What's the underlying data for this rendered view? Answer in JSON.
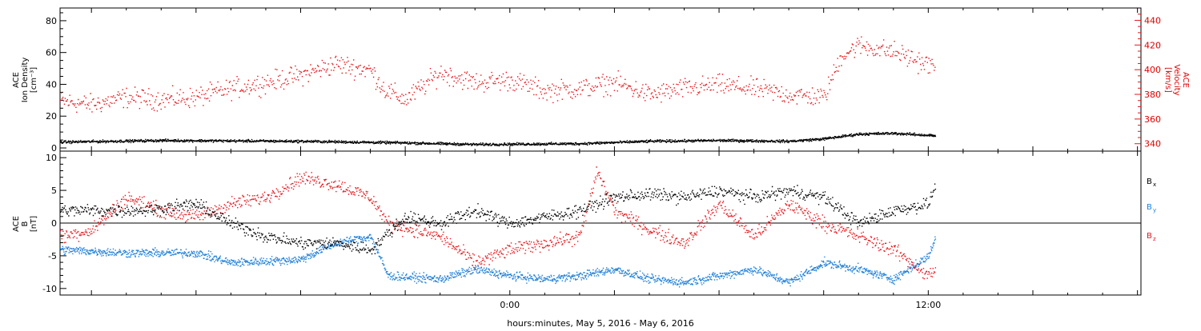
{
  "colors": {
    "black": "#000000",
    "red": "#e8141a",
    "blue": "#1e7fd8"
  },
  "chart_data": [
    {
      "type": "scatter",
      "panel": "top",
      "ylabel_left": [
        "ACE",
        "Ion Density",
        "[cm⁻³]"
      ],
      "ylabel_right": [
        "ACE",
        "Velocity",
        "[km/s]"
      ],
      "ylim_left": [
        -2,
        88
      ],
      "ylim_right": [
        334,
        450
      ],
      "yticks_left": [
        0,
        20,
        40,
        60,
        80
      ],
      "yticks_right": [
        340,
        360,
        380,
        400,
        420,
        440
      ],
      "series": [
        {
          "name": "Ion Density",
          "axis": "left",
          "color": "black",
          "knots": [
            [
              -12.9,
              4
            ],
            [
              -10,
              5
            ],
            [
              -6,
              4.5
            ],
            [
              -3,
              3.5
            ],
            [
              -1,
              2.5
            ],
            [
              2,
              3
            ],
            [
              4,
              4.5
            ],
            [
              6,
              5
            ],
            [
              8,
              4.5
            ],
            [
              9,
              6
            ],
            [
              10,
              9
            ],
            [
              11,
              9.5
            ],
            [
              12.2,
              8
            ]
          ]
        },
        {
          "name": "Velocity",
          "axis": "right",
          "color": "red",
          "knots": [
            [
              -12.9,
              375
            ],
            [
              -12,
              372
            ],
            [
              -11,
              378
            ],
            [
              -10,
              376
            ],
            [
              -9,
              378
            ],
            [
              -8,
              385
            ],
            [
              -7,
              390
            ],
            [
              -6,
              396
            ],
            [
              -5,
              405
            ],
            [
              -4,
              400
            ],
            [
              -3.6,
              384
            ],
            [
              -3,
              376
            ],
            [
              -2,
              398
            ],
            [
              -1,
              390
            ],
            [
              0,
              392
            ],
            [
              1,
              383
            ],
            [
              2,
              385
            ],
            [
              3,
              390
            ],
            [
              4,
              380
            ],
            [
              5,
              385
            ],
            [
              6,
              388
            ],
            [
              7,
              385
            ],
            [
              8,
              380
            ],
            [
              9,
              378
            ],
            [
              9.5,
              412
            ],
            [
              10,
              420
            ],
            [
              11,
              415
            ],
            [
              12.2,
              402
            ]
          ]
        }
      ]
    },
    {
      "type": "scatter",
      "panel": "bottom",
      "ylabel": [
        "ACE",
        "B",
        "[nT]"
      ],
      "ylim": [
        -11,
        11
      ],
      "yticks": [
        -10,
        -5,
        0,
        5,
        10
      ],
      "zero_line": true,
      "legend": [
        "Bx",
        "By",
        "Bz"
      ],
      "series": [
        {
          "name": "Bx",
          "color": "black",
          "knots": [
            [
              -12.9,
              2
            ],
            [
              -12,
              2
            ],
            [
              -10.5,
              2
            ],
            [
              -9,
              3
            ],
            [
              -8,
              0
            ],
            [
              -7,
              -2
            ],
            [
              -6,
              -3
            ],
            [
              -5,
              -3
            ],
            [
              -4,
              -4
            ],
            [
              -3,
              1
            ],
            [
              -2,
              0
            ],
            [
              -1,
              2
            ],
            [
              0,
              0
            ],
            [
              1,
              1
            ],
            [
              2,
              2
            ],
            [
              3,
              4
            ],
            [
              4,
              4.5
            ],
            [
              5,
              4
            ],
            [
              6,
              5
            ],
            [
              7,
              4
            ],
            [
              8,
              5
            ],
            [
              9,
              4
            ],
            [
              10,
              0
            ],
            [
              11,
              2
            ],
            [
              12,
              3
            ],
            [
              12.2,
              6
            ]
          ]
        },
        {
          "name": "By",
          "color": "blue",
          "knots": [
            [
              -12.9,
              -4
            ],
            [
              -11,
              -4.5
            ],
            [
              -9,
              -4.5
            ],
            [
              -8,
              -6
            ],
            [
              -6,
              -5.5
            ],
            [
              -5,
              -3
            ],
            [
              -4,
              -2
            ],
            [
              -3.5,
              -8
            ],
            [
              -2,
              -8.5
            ],
            [
              -1,
              -7
            ],
            [
              0,
              -8
            ],
            [
              1,
              -8.5
            ],
            [
              2,
              -8
            ],
            [
              3,
              -7
            ],
            [
              4,
              -8.5
            ],
            [
              5,
              -9
            ],
            [
              6,
              -8
            ],
            [
              7,
              -7
            ],
            [
              8,
              -9
            ],
            [
              9,
              -6
            ],
            [
              10,
              -7
            ],
            [
              11,
              -8.5
            ],
            [
              12,
              -5
            ],
            [
              12.2,
              -2
            ]
          ]
        },
        {
          "name": "Bz",
          "color": "red",
          "knots": [
            [
              -12.9,
              -2
            ],
            [
              -12,
              -1
            ],
            [
              -11,
              4
            ],
            [
              -10,
              2
            ],
            [
              -9,
              1
            ],
            [
              -8,
              3
            ],
            [
              -7,
              4
            ],
            [
              -6,
              7
            ],
            [
              -5,
              6
            ],
            [
              -4,
              4
            ],
            [
              -3.5,
              0
            ],
            [
              -2,
              -2
            ],
            [
              -1,
              -6
            ],
            [
              0,
              -4
            ],
            [
              1,
              -3
            ],
            [
              2,
              -2
            ],
            [
              2.5,
              8
            ],
            [
              3,
              2
            ],
            [
              4,
              -1
            ],
            [
              5,
              -3
            ],
            [
              6,
              3
            ],
            [
              7,
              -2
            ],
            [
              8,
              3
            ],
            [
              9,
              0
            ],
            [
              10,
              -2
            ],
            [
              11,
              -4
            ],
            [
              12,
              -8
            ],
            [
              12.2,
              -7
            ]
          ]
        }
      ]
    }
  ],
  "x_axis": {
    "range_hours": [
      -12.9,
      18.1
    ],
    "tick_labels": [
      {
        "hour": 0,
        "label": "0:00"
      },
      {
        "hour": 12,
        "label": "12:00"
      }
    ],
    "caption": "hours:minutes, May  5, 2016 - May  6, 2016"
  },
  "legend_labels": {
    "bx_main": "B",
    "bx_sub": "x",
    "by_main": "B",
    "by_sub": "y",
    "bz_main": "B",
    "bz_sub": "z"
  },
  "labels": {
    "top_left_line1": "ACE",
    "top_left_line2": "Ion Density",
    "top_left_line3": "[cm⁻³]",
    "top_right_line1": "ACE",
    "top_right_line2": "Velocity",
    "top_right_line3": "[km/s]",
    "bottom_left_line1": "ACE",
    "bottom_left_line2": "B",
    "bottom_left_line3": "[nT]"
  }
}
